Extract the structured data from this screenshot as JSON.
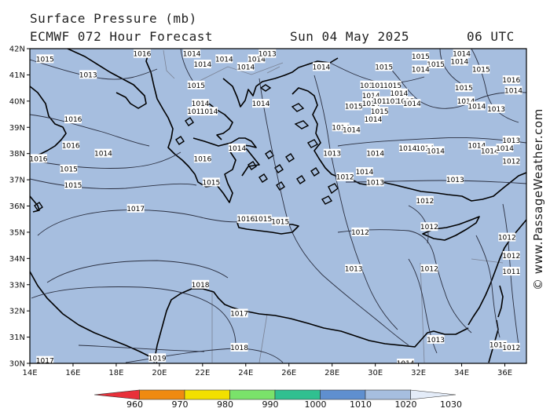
{
  "header": {
    "title": "Surface Pressure (mb)",
    "model": "ECMWF 072 Hour Forecast",
    "date": "Sun 04 May 2025",
    "time": "06 UTC"
  },
  "credit": "© www.PassageWeather.com",
  "axes": {
    "lat_labels": [
      "42N",
      "41N",
      "40N",
      "39N",
      "38N",
      "37N",
      "36N",
      "35N",
      "34N",
      "33N",
      "32N",
      "31N",
      "30N"
    ],
    "lon_labels": [
      "14E",
      "16E",
      "18E",
      "20E",
      "22E",
      "24E",
      "26E",
      "28E",
      "30E",
      "32E",
      "34E",
      "36E"
    ]
  },
  "colors": {
    "sea_fill": "#a6bedf",
    "land_fill": "#a6bedf",
    "coast": "#000000",
    "isobar": "#2a2f40"
  },
  "colorbar": {
    "labels": [
      "960",
      "970",
      "980",
      "990",
      "1000",
      "1010",
      "1020",
      "1030"
    ],
    "colors": [
      "#e8303a",
      "#f08a10",
      "#f2e000",
      "#7ae26a",
      "#30c090",
      "#5f8fcf",
      "#a6bedf",
      "#e4ecf8"
    ]
  },
  "isobar_labels": [
    {
      "text": "1015",
      "lon": 14.7,
      "lat": 41.6
    },
    {
      "text": "1013",
      "lon": 16.7,
      "lat": 41.0
    },
    {
      "text": "1016",
      "lon": 19.2,
      "lat": 41.8
    },
    {
      "text": "1014",
      "lon": 21.5,
      "lat": 41.8
    },
    {
      "text": "1014",
      "lon": 22.0,
      "lat": 41.4
    },
    {
      "text": "1014",
      "lon": 23.0,
      "lat": 41.6
    },
    {
      "text": "1014",
      "lon": 24.0,
      "lat": 41.3
    },
    {
      "text": "1014",
      "lon": 24.5,
      "lat": 41.6
    },
    {
      "text": "1013",
      "lon": 25.0,
      "lat": 41.8
    },
    {
      "text": "1014",
      "lon": 27.5,
      "lat": 41.3
    },
    {
      "text": "1015",
      "lon": 30.4,
      "lat": 41.3
    },
    {
      "text": "1015",
      "lon": 32.1,
      "lat": 41.7
    },
    {
      "text": "1015",
      "lon": 32.8,
      "lat": 41.4
    },
    {
      "text": "1014",
      "lon": 32.1,
      "lat": 41.2
    },
    {
      "text": "1014",
      "lon": 34.0,
      "lat": 41.8
    },
    {
      "text": "1014",
      "lon": 33.9,
      "lat": 41.5
    },
    {
      "text": "1015",
      "lon": 34.9,
      "lat": 41.2
    },
    {
      "text": "1016",
      "lon": 36.3,
      "lat": 40.8
    },
    {
      "text": "1015",
      "lon": 21.7,
      "lat": 40.6
    },
    {
      "text": "1014",
      "lon": 21.9,
      "lat": 39.9
    },
    {
      "text": "1016",
      "lon": 21.7,
      "lat": 39.6
    },
    {
      "text": "1014",
      "lon": 22.3,
      "lat": 39.6
    },
    {
      "text": "1014",
      "lon": 24.7,
      "lat": 39.9
    },
    {
      "text": "1015",
      "lon": 29.0,
      "lat": 39.8
    },
    {
      "text": "1015",
      "lon": 29.7,
      "lat": 40.6
    },
    {
      "text": "1015",
      "lon": 30.2,
      "lat": 40.6
    },
    {
      "text": "1015",
      "lon": 30.8,
      "lat": 40.6
    },
    {
      "text": "1014",
      "lon": 29.8,
      "lat": 40.2
    },
    {
      "text": "1014",
      "lon": 29.8,
      "lat": 39.9
    },
    {
      "text": "1014",
      "lon": 30.3,
      "lat": 40.0
    },
    {
      "text": "1015",
      "lon": 30.9,
      "lat": 40.0
    },
    {
      "text": "1015",
      "lon": 31.4,
      "lat": 40.0
    },
    {
      "text": "1014",
      "lon": 31.1,
      "lat": 40.3
    },
    {
      "text": "1014",
      "lon": 31.7,
      "lat": 39.9
    },
    {
      "text": "1015",
      "lon": 30.2,
      "lat": 39.6
    },
    {
      "text": "1014",
      "lon": 29.9,
      "lat": 39.3
    },
    {
      "text": "1015",
      "lon": 34.1,
      "lat": 40.5
    },
    {
      "text": "1014",
      "lon": 34.2,
      "lat": 40.0
    },
    {
      "text": "1014",
      "lon": 34.7,
      "lat": 39.8
    },
    {
      "text": "1013",
      "lon": 35.6,
      "lat": 39.7
    },
    {
      "text": "1014",
      "lon": 36.4,
      "lat": 40.4
    },
    {
      "text": "1016",
      "lon": 16.0,
      "lat": 39.3
    },
    {
      "text": "1016",
      "lon": 15.9,
      "lat": 38.3
    },
    {
      "text": "1014",
      "lon": 17.4,
      "lat": 38.0
    },
    {
      "text": "1016",
      "lon": 14.4,
      "lat": 37.8
    },
    {
      "text": "1015",
      "lon": 15.8,
      "lat": 37.4
    },
    {
      "text": "1015",
      "lon": 16.0,
      "lat": 36.8
    },
    {
      "text": "1016",
      "lon": 22.0,
      "lat": 37.8
    },
    {
      "text": "1014",
      "lon": 23.6,
      "lat": 38.2
    },
    {
      "text": "1015",
      "lon": 22.4,
      "lat": 36.9
    },
    {
      "text": "1014",
      "lon": 28.4,
      "lat": 39.0
    },
    {
      "text": "1014",
      "lon": 28.9,
      "lat": 38.9
    },
    {
      "text": "1013",
      "lon": 28.0,
      "lat": 38.0
    },
    {
      "text": "1014",
      "lon": 30.0,
      "lat": 38.0
    },
    {
      "text": "1014",
      "lon": 31.5,
      "lat": 38.2
    },
    {
      "text": "1014",
      "lon": 32.3,
      "lat": 38.2
    },
    {
      "text": "1014",
      "lon": 32.8,
      "lat": 38.1
    },
    {
      "text": "1014",
      "lon": 34.7,
      "lat": 38.3
    },
    {
      "text": "1014",
      "lon": 35.3,
      "lat": 38.1
    },
    {
      "text": "1013",
      "lon": 36.3,
      "lat": 38.5
    },
    {
      "text": "1014",
      "lon": 36.0,
      "lat": 38.2
    },
    {
      "text": "1012",
      "lon": 36.3,
      "lat": 37.7
    },
    {
      "text": "1014",
      "lon": 29.5,
      "lat": 37.3
    },
    {
      "text": "1012",
      "lon": 28.6,
      "lat": 37.1
    },
    {
      "text": "1013",
      "lon": 30.0,
      "lat": 36.9
    },
    {
      "text": "1013",
      "lon": 33.7,
      "lat": 37.0
    },
    {
      "text": "1012",
      "lon": 32.3,
      "lat": 36.2
    },
    {
      "text": "1017",
      "lon": 18.9,
      "lat": 35.9
    },
    {
      "text": "1016",
      "lon": 24.0,
      "lat": 35.5
    },
    {
      "text": "1015",
      "lon": 24.8,
      "lat": 35.5
    },
    {
      "text": "1015",
      "lon": 25.6,
      "lat": 35.4
    },
    {
      "text": "1012",
      "lon": 29.3,
      "lat": 35.0
    },
    {
      "text": "1012",
      "lon": 32.5,
      "lat": 35.2
    },
    {
      "text": "1012",
      "lon": 36.1,
      "lat": 34.8
    },
    {
      "text": "1012",
      "lon": 36.3,
      "lat": 34.1
    },
    {
      "text": "1011",
      "lon": 36.3,
      "lat": 33.5
    },
    {
      "text": "1013",
      "lon": 29.0,
      "lat": 33.6
    },
    {
      "text": "1012",
      "lon": 32.5,
      "lat": 33.6
    },
    {
      "text": "1018",
      "lon": 21.9,
      "lat": 33.0
    },
    {
      "text": "1017",
      "lon": 23.7,
      "lat": 31.9
    },
    {
      "text": "1018",
      "lon": 23.7,
      "lat": 30.6
    },
    {
      "text": "1019",
      "lon": 19.9,
      "lat": 30.2
    },
    {
      "text": "1017",
      "lon": 14.7,
      "lat": 30.1
    },
    {
      "text": "1013",
      "lon": 32.8,
      "lat": 30.9
    },
    {
      "text": "1014",
      "lon": 31.4,
      "lat": 30.0
    },
    {
      "text": "1012",
      "lon": 35.7,
      "lat": 30.7
    },
    {
      "text": "1012",
      "lon": 36.3,
      "lat": 30.6
    }
  ]
}
